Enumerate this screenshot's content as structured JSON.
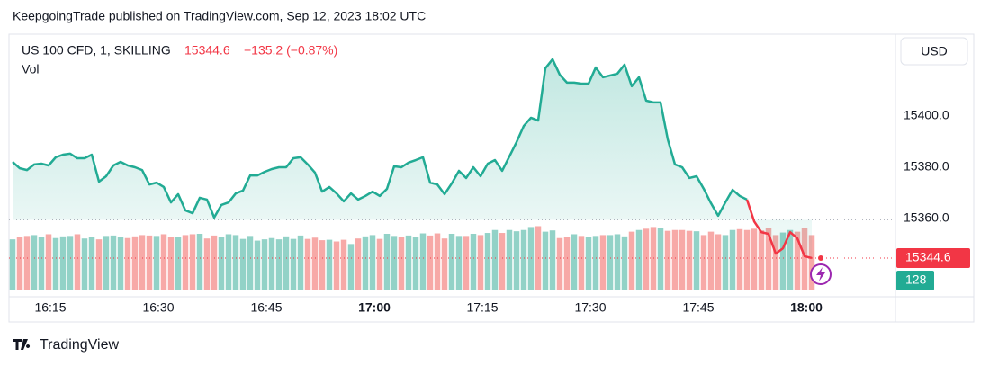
{
  "header": "KeepgoingTrade published on TradingView.com, Sep 12, 2023 18:02 UTC",
  "footer": "TradingView",
  "chart_data": {
    "type": "line",
    "title": "US 100 CFD, 1, SKILLING",
    "change": "−135.2 (−0.87%)",
    "currency": "USD",
    "categories": [
      null,
      null,
      null,
      null,
      null,
      null,
      "16:15",
      null,
      null,
      null,
      null,
      null,
      null,
      null,
      null,
      null,
      null,
      null,
      null,
      null,
      null,
      "16:30",
      null,
      null,
      null,
      null,
      null,
      null,
      null,
      null,
      null,
      null,
      null,
      null,
      null,
      null,
      "16:45",
      null,
      null,
      null,
      null,
      null,
      null,
      null,
      null,
      null,
      null,
      null,
      null,
      null,
      null,
      "17:00",
      null,
      null,
      null,
      null,
      null,
      null,
      null,
      null,
      null,
      null,
      null,
      null,
      null,
      null,
      "17:15",
      null,
      null,
      null,
      null,
      null,
      null,
      null,
      null,
      null,
      null,
      null,
      null,
      null,
      null,
      "17:30",
      null,
      null,
      null,
      null,
      null,
      null,
      null,
      null,
      null,
      null,
      null,
      null,
      null,
      null,
      "17:45",
      null,
      null,
      null,
      null,
      null,
      null,
      null,
      null,
      null,
      null,
      null,
      null,
      null,
      null,
      "18:00"
    ],
    "series": [
      {
        "color": "#22ab94",
        "color_below": "#f23645",
        "fill": "#22ab94",
        "values": [
          15382.1,
          15379.6,
          15378.9,
          15381.1,
          15381.4,
          15380.7,
          15383.9,
          15384.9,
          15385.3,
          15383.5,
          15383.5,
          15384.9,
          15374.4,
          15376.5,
          15380.7,
          15382.1,
          15380.7,
          15380.0,
          15378.9,
          15373.3,
          15374.0,
          15372.3,
          15366.3,
          15369.5,
          15363.2,
          15362.1,
          15368.1,
          15367.4,
          15360.4,
          15365.3,
          15366.3,
          15369.8,
          15370.9,
          15376.8,
          15376.8,
          15378.2,
          15379.3,
          15380.0,
          15380.0,
          15383.5,
          15383.9,
          15381.1,
          15377.9,
          15370.5,
          15372.3,
          15369.8,
          15366.7,
          15369.8,
          15367.4,
          15368.8,
          15370.5,
          15368.8,
          15371.6,
          15380.4,
          15380.0,
          15381.8,
          15382.8,
          15383.9,
          15374.0,
          15373.3,
          15369.5,
          15373.7,
          15378.6,
          15375.8,
          15380.0,
          15376.5,
          15381.4,
          15382.8,
          15378.6,
          15384.2,
          15389.8,
          15396.1,
          15399.3,
          15398.2,
          15418.6,
          15422.1,
          15416.1,
          15413.0,
          15413.0,
          15412.6,
          15412.6,
          15418.9,
          15415.1,
          15415.8,
          15416.5,
          15420.0,
          15411.6,
          15415.1,
          15406.0,
          15405.3,
          15405.3,
          15390.9,
          15381.1,
          15380.0,
          15375.8,
          15376.5,
          15371.6,
          15366.0,
          15361.1,
          15366.3,
          15371.2,
          15368.8,
          15367.4,
          15358.9,
          15354.7,
          15354.0,
          15346.3,
          15348.4,
          15354.7,
          15352.3,
          15345.3,
          15344.6
        ]
      }
    ],
    "baseline": 15359.5,
    "ylim": [
      15329.5,
      15431.9
    ],
    "yticks": [
      {
        "value": 15360,
        "label": "15360.0"
      },
      {
        "value": 15380,
        "label": "15380.0"
      },
      {
        "value": 15400,
        "label": "15400.0"
      }
    ],
    "volume": {
      "label": "Vol",
      "up_color": "#92d2c7",
      "down_color": "#f7a9a7",
      "label_color": "#22ab94",
      "ylim": [
        0,
        600
      ],
      "values": [
        118,
        124,
        126,
        128,
        124,
        130,
        121,
        125,
        126,
        130,
        120,
        124,
        118,
        126,
        127,
        124,
        121,
        125,
        128,
        127,
        126,
        130,
        123,
        124,
        128,
        130,
        131,
        120,
        127,
        124,
        130,
        128,
        119,
        126,
        115,
        118,
        121,
        118,
        125,
        119,
        127,
        119,
        122,
        116,
        117,
        113,
        117,
        107,
        120,
        125,
        128,
        119,
        131,
        126,
        124,
        127,
        124,
        132,
        127,
        132,
        120,
        131,
        126,
        126,
        131,
        128,
        133,
        140,
        133,
        140,
        137,
        140,
        147,
        149,
        136,
        139,
        121,
        124,
        130,
        126,
        124,
        126,
        128,
        128,
        130,
        125,
        136,
        140,
        143,
        147,
        145,
        138,
        140,
        140,
        138,
        137,
        128,
        136,
        130,
        128,
        140,
        142,
        140,
        143,
        139,
        145,
        128,
        134,
        140,
        136,
        145,
        128
      ]
    }
  }
}
